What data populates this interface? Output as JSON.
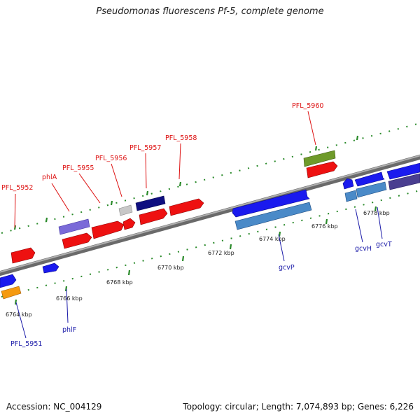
{
  "title": "Pseudomonas fluorescens Pf-5, complete genome",
  "footer": {
    "accession": "Accession: NC_004129",
    "summary": "Topology: circular; Length: 7,074,893 bp; Genes: 6,226"
  },
  "colors": {
    "background": "#ffffff",
    "backbone": "#808080",
    "tick_mark": "#2a8a2a",
    "label_top_strand": "#dd1111",
    "label_bottom_strand": "#1a1aa8",
    "cds_red": "#ee1111",
    "cds_blue": "#1a1aee",
    "cds_steelblue": "#4a8ac8",
    "cds_slate": "#7a6ad8",
    "cds_navy": "#0e0e80",
    "cds_darkslate": "#4a3e90",
    "cds_olive": "#6e9a2a",
    "cds_orange": "#f59a10",
    "cds_gray": "#c8c8c8"
  },
  "map": {
    "unit": "kbp",
    "ticks": [
      {
        "kbp": 6764,
        "label": "6764 kbp"
      },
      {
        "kbp": 6766,
        "label": "6766 kbp"
      },
      {
        "kbp": 6768,
        "label": "6768 kbp"
      },
      {
        "kbp": 6770,
        "label": "6770 kbp"
      },
      {
        "kbp": 6772,
        "label": "6772 kbp"
      },
      {
        "kbp": 6774,
        "label": "6774 kbp"
      },
      {
        "kbp": 6776,
        "label": "6776 kbp"
      },
      {
        "kbp": 6778,
        "label": "6778 kbp"
      }
    ],
    "labels_top_strand": [
      "PFL_5952",
      "phlA",
      "PFL_5955",
      "PFL_5956",
      "PFL_5957",
      "PFL_5958",
      "PFL_5960"
    ],
    "labels_bottom_strand": [
      "PFL_5951",
      "phlF",
      "gcvP",
      "gcvH",
      "gcvT"
    ]
  }
}
